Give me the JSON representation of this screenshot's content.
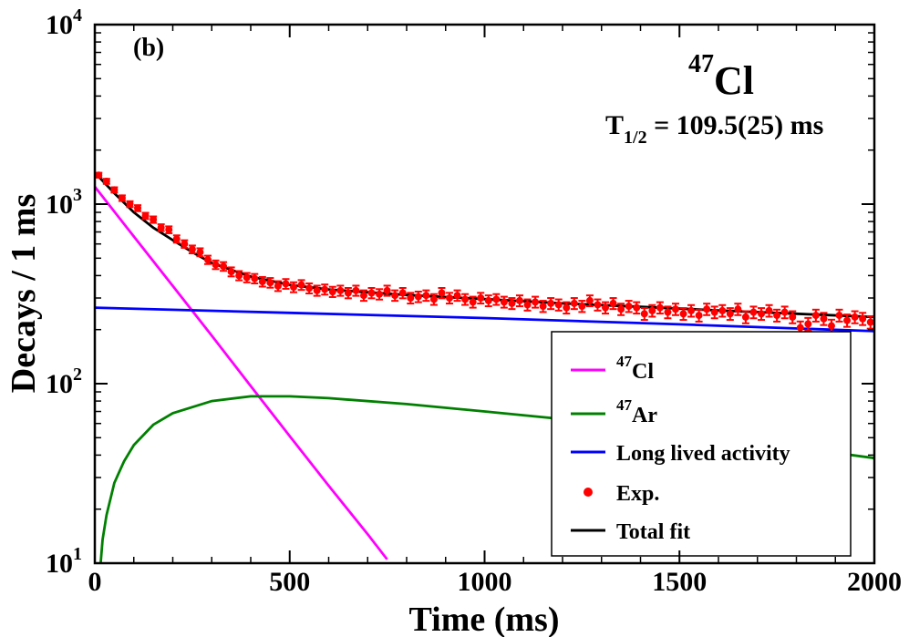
{
  "chart_data": {
    "type": "scatter",
    "panel_label": "(b)",
    "xlabel": "Time (ms)",
    "ylabel": "Decays / 1 ms",
    "xlim": [
      0,
      2000
    ],
    "ylim": [
      10,
      10000
    ],
    "yscale": "log",
    "xticks": [
      0,
      500,
      1000,
      1500,
      2000
    ],
    "xtick_labels": [
      "0",
      "500",
      "1000",
      "1500",
      "2000"
    ],
    "yticks": [
      10,
      100,
      1000,
      10000
    ],
    "ytick_bases": [
      "10",
      "10",
      "10",
      "10"
    ],
    "ytick_exps": [
      "1",
      "2",
      "3",
      "4"
    ],
    "grid": false,
    "nucleus": {
      "mass": "47",
      "symbol": "Cl"
    },
    "halflife": {
      "prefix": "T",
      "sub": "1/2",
      "value": " = 109.5(25) ms"
    },
    "legend": {
      "placement": "bottom-right",
      "entries": [
        {
          "mass": "47",
          "label": "Cl",
          "color": "#ff00ff",
          "kind": "line"
        },
        {
          "mass": "47",
          "label": "Ar",
          "color": "#008000",
          "kind": "line"
        },
        {
          "mass": "",
          "label": "Long lived activity",
          "color": "#0000ff",
          "kind": "line"
        },
        {
          "mass": "",
          "label": "Exp.",
          "color": "#ff0000",
          "kind": "marker"
        },
        {
          "mass": "",
          "label": "Total fit",
          "color": "#000000",
          "kind": "line"
        }
      ]
    },
    "series": [
      {
        "name": "47Cl",
        "color": "#ff00ff",
        "x": [
          0,
          100,
          200,
          300,
          400,
          500,
          600,
          700,
          750
        ],
        "y": [
          1250,
          660,
          350,
          185,
          97,
          51,
          27,
          14.5,
          10.5
        ]
      },
      {
        "name": "47Ar",
        "color": "#008000",
        "x": [
          15,
          20,
          30,
          50,
          75,
          100,
          150,
          200,
          300,
          400,
          500,
          600,
          800,
          1000,
          1200,
          1400,
          1600,
          1800,
          2000
        ],
        "y": [
          10,
          13.5,
          18.5,
          28,
          37,
          45.5,
          59,
          68.5,
          80,
          85,
          85,
          83,
          77,
          70,
          63.5,
          56.5,
          50,
          44,
          38.5
        ]
      },
      {
        "name": "Long lived activity",
        "color": "#0000ff",
        "x": [
          0,
          500,
          1000,
          1500,
          2000
        ],
        "y": [
          265,
          248,
          232,
          214,
          196
        ]
      },
      {
        "name": "Total fit",
        "color": "#000000",
        "x": [
          0,
          50,
          100,
          150,
          200,
          250,
          300,
          400,
          500,
          600,
          700,
          800,
          1000,
          1200,
          1400,
          1600,
          1800,
          2000
        ],
        "y": [
          1500,
          1150,
          900,
          740,
          630,
          540,
          470,
          395,
          355,
          335,
          323,
          312,
          296,
          280,
          268,
          256,
          245,
          235
        ]
      },
      {
        "name": "Exp.",
        "color": "#ff0000",
        "x": [
          10,
          30,
          50,
          70,
          90,
          110,
          130,
          150,
          170,
          190,
          210,
          230,
          250,
          270,
          290,
          310,
          330,
          350,
          370,
          390,
          410,
          430,
          450,
          470,
          490,
          510,
          530,
          550,
          570,
          590,
          610,
          630,
          650,
          670,
          690,
          710,
          730,
          750,
          770,
          790,
          810,
          830,
          850,
          870,
          890,
          910,
          930,
          950,
          970,
          990,
          1010,
          1030,
          1050,
          1070,
          1090,
          1110,
          1130,
          1150,
          1170,
          1190,
          1210,
          1230,
          1250,
          1270,
          1290,
          1310,
          1330,
          1350,
          1370,
          1390,
          1410,
          1430,
          1450,
          1470,
          1490,
          1510,
          1530,
          1550,
          1570,
          1590,
          1610,
          1630,
          1650,
          1670,
          1690,
          1710,
          1730,
          1750,
          1770,
          1790,
          1810,
          1830,
          1850,
          1870,
          1890,
          1910,
          1930,
          1950,
          1970,
          1990
        ],
        "y": [
          1450,
          1340,
          1200,
          1080,
          1000,
          950,
          860,
          820,
          740,
          720,
          640,
          600,
          560,
          540,
          490,
          460,
          450,
          420,
          400,
          390,
          385,
          370,
          365,
          350,
          360,
          345,
          355,
          340,
          330,
          335,
          325,
          330,
          320,
          330,
          310,
          320,
          315,
          330,
          310,
          320,
          300,
          305,
          310,
          295,
          320,
          300,
          310,
          295,
          285,
          300,
          290,
          295,
          285,
          280,
          290,
          275,
          285,
          270,
          280,
          275,
          265,
          280,
          270,
          290,
          275,
          265,
          280,
          260,
          270,
          265,
          245,
          255,
          265,
          250,
          260,
          245,
          255,
          240,
          260,
          250,
          255,
          245,
          260,
          235,
          250,
          245,
          255,
          240,
          250,
          235,
          205,
          215,
          240,
          230,
          210,
          240,
          225,
          235,
          230,
          220
        ]
      }
    ]
  }
}
